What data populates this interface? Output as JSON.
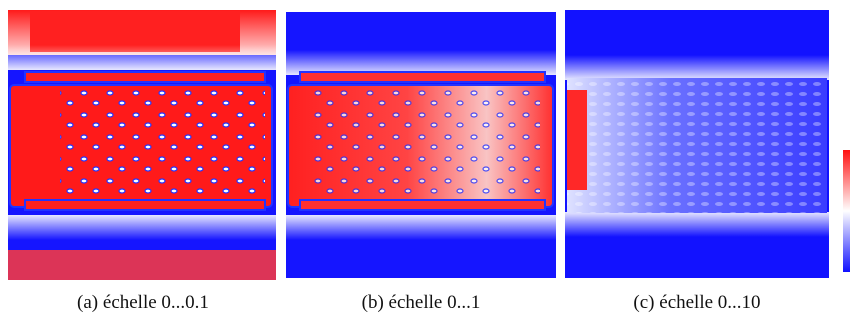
{
  "captions": [
    "(a) échelle 0...0.1",
    "(b) échelle 0...1",
    "(c) échelle 0...10"
  ]
}
